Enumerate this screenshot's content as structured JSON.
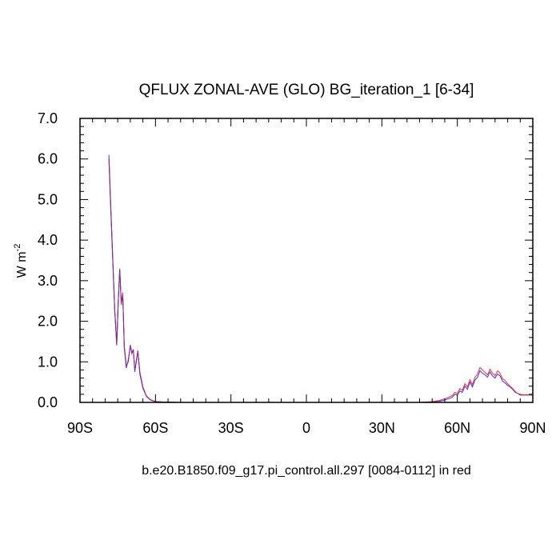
{
  "chart_data": {
    "type": "line",
    "title": "QFLUX ZONAL-AVE (GLO) BG_iteration_1 [6-34]",
    "ylabel_base": "W m",
    "ylabel_exp": "-2",
    "footer": "b.e20.B1850.f09_g17.pi_control.all.297 [0084-0112] in red",
    "xlim": [
      -90,
      90
    ],
    "ylim": [
      0,
      7
    ],
    "xticks": [
      {
        "value": -90,
        "label": "90S"
      },
      {
        "value": -60,
        "label": "60S"
      },
      {
        "value": -30,
        "label": "30S"
      },
      {
        "value": 0,
        "label": "0"
      },
      {
        "value": 30,
        "label": "30N"
      },
      {
        "value": 60,
        "label": "60N"
      },
      {
        "value": 90,
        "label": "90N"
      }
    ],
    "yticks": [
      {
        "value": 0,
        "label": "0.0"
      },
      {
        "value": 1,
        "label": "1.0"
      },
      {
        "value": 2,
        "label": "2.0"
      },
      {
        "value": 3,
        "label": "3.0"
      },
      {
        "value": 4,
        "label": "4.0"
      },
      {
        "value": 5,
        "label": "5.0"
      },
      {
        "value": 6,
        "label": "6.0"
      },
      {
        "value": 7,
        "label": "7.0"
      }
    ],
    "series": [
      {
        "color": "#3333ff",
        "x": [
          -78.5,
          -77.8,
          -77.0,
          -76.2,
          -75.4,
          -74.8,
          -74.2,
          -73.6,
          -73.0,
          -72.4,
          -71.6,
          -70.8,
          -70.0,
          -69.4,
          -68.8,
          -68.2,
          -67.6,
          -67.0,
          -66.2,
          -65.0,
          -63.6,
          -62.0,
          -60.0,
          -57.0,
          -50.0,
          -30.0,
          0.0,
          30.0,
          45.0,
          50.0,
          53.0,
          55.0,
          57.0,
          58.0,
          59.0,
          60.0,
          61.0,
          62.0,
          63.0,
          64.0,
          65.0,
          66.0,
          67.0,
          68.0,
          69.0,
          70.0,
          71.0,
          72.0,
          73.0,
          74.0,
          75.0,
          76.0,
          77.0,
          78.0,
          79.0,
          80.0,
          81.0,
          82.0,
          83.0,
          84.0,
          85.0,
          86.0,
          87.0,
          88.0,
          90.0
        ],
        "y": [
          6.1,
          4.9,
          3.6,
          2.3,
          1.45,
          2.5,
          3.25,
          2.5,
          2.6,
          1.35,
          0.85,
          1.05,
          1.38,
          1.25,
          1.28,
          0.75,
          1.05,
          1.25,
          0.7,
          0.35,
          0.15,
          0.06,
          0.02,
          0.01,
          0.0,
          0.0,
          0.0,
          0.0,
          0.0,
          0.01,
          0.03,
          0.06,
          0.1,
          0.13,
          0.2,
          0.18,
          0.28,
          0.25,
          0.4,
          0.32,
          0.5,
          0.38,
          0.55,
          0.62,
          0.78,
          0.72,
          0.68,
          0.62,
          0.75,
          0.65,
          0.6,
          0.7,
          0.65,
          0.52,
          0.48,
          0.42,
          0.38,
          0.32,
          0.25,
          0.22,
          0.18,
          0.18,
          0.18,
          0.18,
          0.18
        ]
      },
      {
        "color": "#ff2a2a",
        "x": [
          -78.5,
          -77.8,
          -77.0,
          -76.2,
          -75.4,
          -74.8,
          -74.2,
          -73.6,
          -73.0,
          -72.4,
          -71.6,
          -70.8,
          -70.0,
          -69.4,
          -68.8,
          -68.2,
          -67.6,
          -67.0,
          -66.2,
          -65.0,
          -63.6,
          -62.0,
          -60.0,
          -57.0,
          -50.0,
          -30.0,
          0.0,
          30.0,
          45.0,
          50.0,
          53.0,
          55.0,
          57.0,
          58.0,
          59.0,
          60.0,
          61.0,
          62.0,
          63.0,
          64.0,
          65.0,
          66.0,
          67.0,
          68.0,
          69.0,
          70.0,
          71.0,
          72.0,
          73.0,
          74.0,
          75.0,
          76.0,
          77.0,
          78.0,
          79.0,
          80.0,
          81.0,
          82.0,
          83.0,
          84.0,
          85.0,
          86.0,
          87.0,
          88.0,
          90.0
        ],
        "y": [
          5.95,
          4.8,
          3.5,
          2.25,
          1.4,
          2.45,
          3.3,
          2.4,
          2.7,
          1.4,
          0.9,
          1.0,
          1.42,
          1.2,
          1.3,
          0.8,
          1.0,
          1.28,
          0.75,
          0.38,
          0.16,
          0.07,
          0.02,
          0.01,
          0.0,
          0.0,
          0.0,
          0.0,
          0.0,
          0.02,
          0.05,
          0.09,
          0.14,
          0.17,
          0.25,
          0.22,
          0.34,
          0.3,
          0.46,
          0.38,
          0.56,
          0.44,
          0.62,
          0.7,
          0.86,
          0.8,
          0.74,
          0.68,
          0.82,
          0.72,
          0.66,
          0.78,
          0.72,
          0.58,
          0.54,
          0.46,
          0.4,
          0.34,
          0.27,
          0.22,
          0.2,
          0.19,
          0.19,
          0.19,
          0.19
        ]
      },
      {
        "color": "#7a2a9a",
        "x": [
          -78.5,
          -77.8,
          -77.0,
          -76.2,
          -75.4,
          -74.8,
          -74.2,
          -73.6,
          -73.0,
          -72.4,
          -71.6,
          -70.8,
          -70.0,
          -69.4,
          -68.8,
          -68.2,
          -67.6,
          -67.0,
          -66.2,
          -65.0,
          -63.6,
          -62.0,
          -60.0,
          -57.0,
          -50.0,
          -30.0,
          0.0,
          30.0,
          45.0,
          50.0
        ],
        "y": [
          6.02,
          4.85,
          3.55,
          2.28,
          1.43,
          2.48,
          3.28,
          2.45,
          2.65,
          1.38,
          0.88,
          1.02,
          1.4,
          1.22,
          1.29,
          0.78,
          1.02,
          1.27,
          0.72,
          0.36,
          0.15,
          0.06,
          0.02,
          0.01,
          0.0,
          0.0,
          0.0,
          0.0,
          0.0,
          0.01
        ]
      }
    ]
  }
}
